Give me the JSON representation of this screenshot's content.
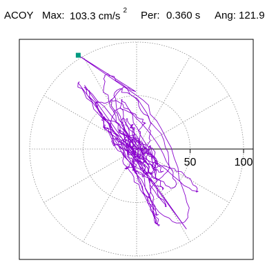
{
  "header": {
    "station": "ACOY",
    "max_label": "Max:",
    "max_value": "103.3 cm/s",
    "max_exponent": "2",
    "period_label": "Per:",
    "period_value": "0.360 s",
    "angle_label": "Ang:",
    "angle_value": "121.9"
  },
  "chart_data": {
    "type": "scatter",
    "subtype": "polar-particle-motion",
    "title": "",
    "radial_ticks": [
      50,
      100
    ],
    "radial_tick_labels": [
      "50",
      "100"
    ],
    "r_max": 100,
    "angular_gridlines_deg": [
      0,
      30,
      60,
      90,
      120,
      150,
      180,
      210,
      240,
      270,
      300,
      330
    ],
    "grid": true,
    "max_point": {
      "r": 103.3,
      "angle_deg": 121.9,
      "marker": "square",
      "color": "#009980"
    },
    "trace_color": "#8800cc",
    "grid_color": "#888888",
    "frame_color": "#000000"
  }
}
